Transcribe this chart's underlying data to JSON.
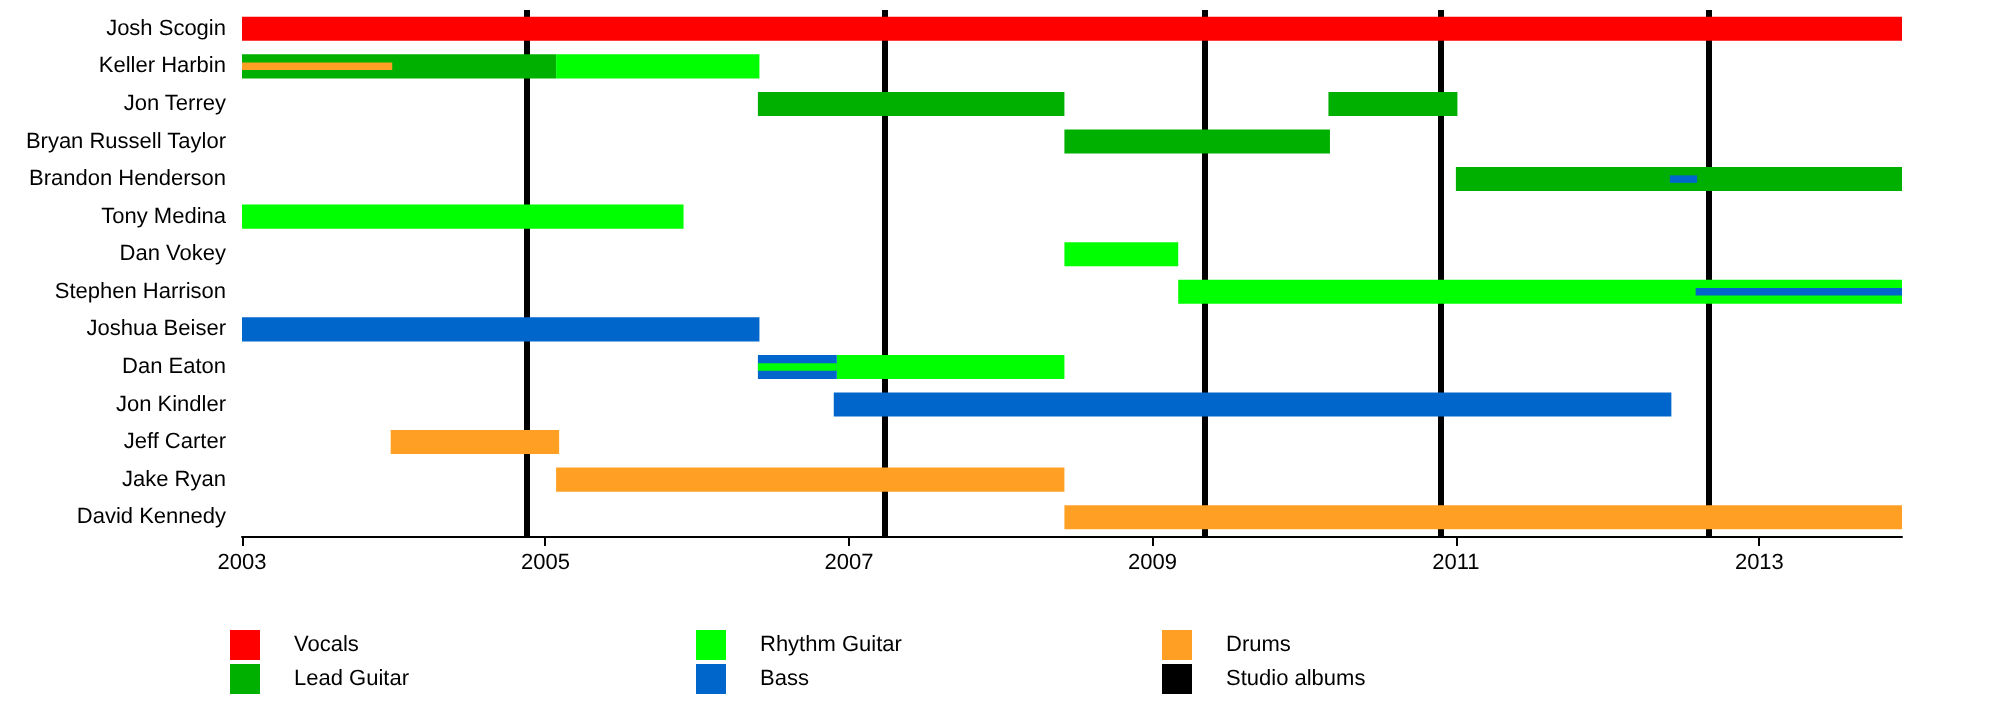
{
  "chart_data": {
    "type": "bar",
    "orientation": "horizontal",
    "categories": [
      "Josh Scogin",
      "Keller Harbin",
      "Jon Terrey",
      "Bryan Russell Taylor",
      "Brandon Henderson",
      "Tony Medina",
      "Dan Vokey",
      "Stephen Harrison",
      "Joshua Beiser",
      "Dan Eaton",
      "Jon Kindler",
      "Jeff Carter",
      "Jake Ryan",
      "David Kennedy"
    ],
    "series": [
      {
        "name": "Vocals",
        "color": "#ff0000",
        "base": [
          2003,
          null,
          null,
          null,
          null,
          null,
          null,
          null,
          null,
          null,
          null,
          null,
          null,
          null
        ],
        "values": [
          10.94,
          null,
          null,
          null,
          null,
          null,
          null,
          null,
          null,
          null,
          null,
          null,
          null,
          null
        ]
      },
      {
        "name": "Lead Guitar",
        "color": "#00b000",
        "base": [
          null,
          2003,
          2006.4,
          2008.42,
          2011.0,
          null,
          null,
          null,
          null,
          null,
          null,
          null,
          null,
          null
        ],
        "values": [
          null,
          2.07,
          2.02,
          1.75,
          2.94,
          null,
          null,
          null,
          null,
          null,
          null,
          null,
          null,
          null
        ]
      },
      {
        "name": "Rhythm Guitar",
        "color": "#00ff00",
        "base": [
          null,
          2005.07,
          null,
          null,
          null,
          2003,
          2008.42,
          2009.17,
          null,
          2006.92,
          null,
          null,
          null,
          null
        ],
        "values": [
          null,
          1.34,
          null,
          null,
          null,
          2.91,
          0.75,
          4.77,
          null,
          1.5,
          null,
          null,
          null,
          null
        ]
      },
      {
        "name": "Bass",
        "color": "#0066cc",
        "base": [
          null,
          null,
          null,
          null,
          null,
          null,
          null,
          null,
          2003,
          2006.4,
          2006.9,
          null,
          null,
          null
        ],
        "values": [
          null,
          null,
          null,
          null,
          null,
          null,
          null,
          null,
          3.41,
          0.52,
          5.52,
          null,
          null,
          null
        ]
      },
      {
        "name": "Drums",
        "color": "#ffa024",
        "base": [
          null,
          null,
          null,
          null,
          null,
          null,
          null,
          null,
          null,
          null,
          null,
          2003.98,
          2005.07,
          2008.42
        ],
        "values": [
          null,
          null,
          null,
          null,
          null,
          null,
          null,
          null,
          null,
          null,
          null,
          1.11,
          3.35,
          5.52
        ]
      },
      {
        "color": "#00b000",
        "base": [
          null,
          null,
          2010.16,
          null,
          null,
          null,
          null,
          null,
          null,
          null,
          null,
          null,
          null,
          null
        ],
        "values": [
          null,
          null,
          0.85,
          null,
          null,
          null,
          null,
          null,
          null,
          null,
          null,
          null,
          null,
          null
        ]
      },
      {
        "color": "#ffa024",
        "base": [
          null,
          2003,
          null,
          null,
          null,
          null,
          null,
          null,
          null,
          null,
          null,
          null,
          null,
          null
        ],
        "values": [
          null,
          0.99,
          null,
          null,
          null,
          null,
          null,
          null,
          null,
          null,
          null,
          null,
          null,
          null
        ]
      },
      {
        "color": "#0066cc",
        "base": [
          null,
          null,
          null,
          null,
          2012.41,
          null,
          null,
          2012.58,
          null,
          null,
          null,
          null,
          null,
          null
        ],
        "values": [
          null,
          null,
          null,
          null,
          0.18,
          null,
          null,
          1.36,
          null,
          null,
          null,
          null,
          null,
          null
        ]
      },
      {
        "color": "#00ff00",
        "base": [
          null,
          null,
          null,
          null,
          null,
          null,
          null,
          null,
          null,
          2006.4,
          null,
          null,
          null,
          null
        ],
        "values": [
          null,
          null,
          null,
          null,
          null,
          null,
          null,
          null,
          null,
          0.52,
          null,
          null,
          null,
          null
        ]
      }
    ],
    "xlim": [
      2003,
      2013.94
    ],
    "xticks": [
      2003,
      2005,
      2007,
      2009,
      2011,
      2013
    ],
    "ref_lines": [
      {
        "axis": "x",
        "value": 2004.87,
        "label": "Studio albums",
        "color": "#000000"
      },
      {
        "axis": "x",
        "value": 2007.24,
        "color": "#000000"
      },
      {
        "axis": "x",
        "value": 2009.34,
        "color": "#000000"
      },
      {
        "axis": "x",
        "value": 2010.9,
        "color": "#000000"
      },
      {
        "axis": "x",
        "value": 2012.66,
        "color": "#000000"
      }
    ],
    "grid": false,
    "legend": "bottom"
  }
}
